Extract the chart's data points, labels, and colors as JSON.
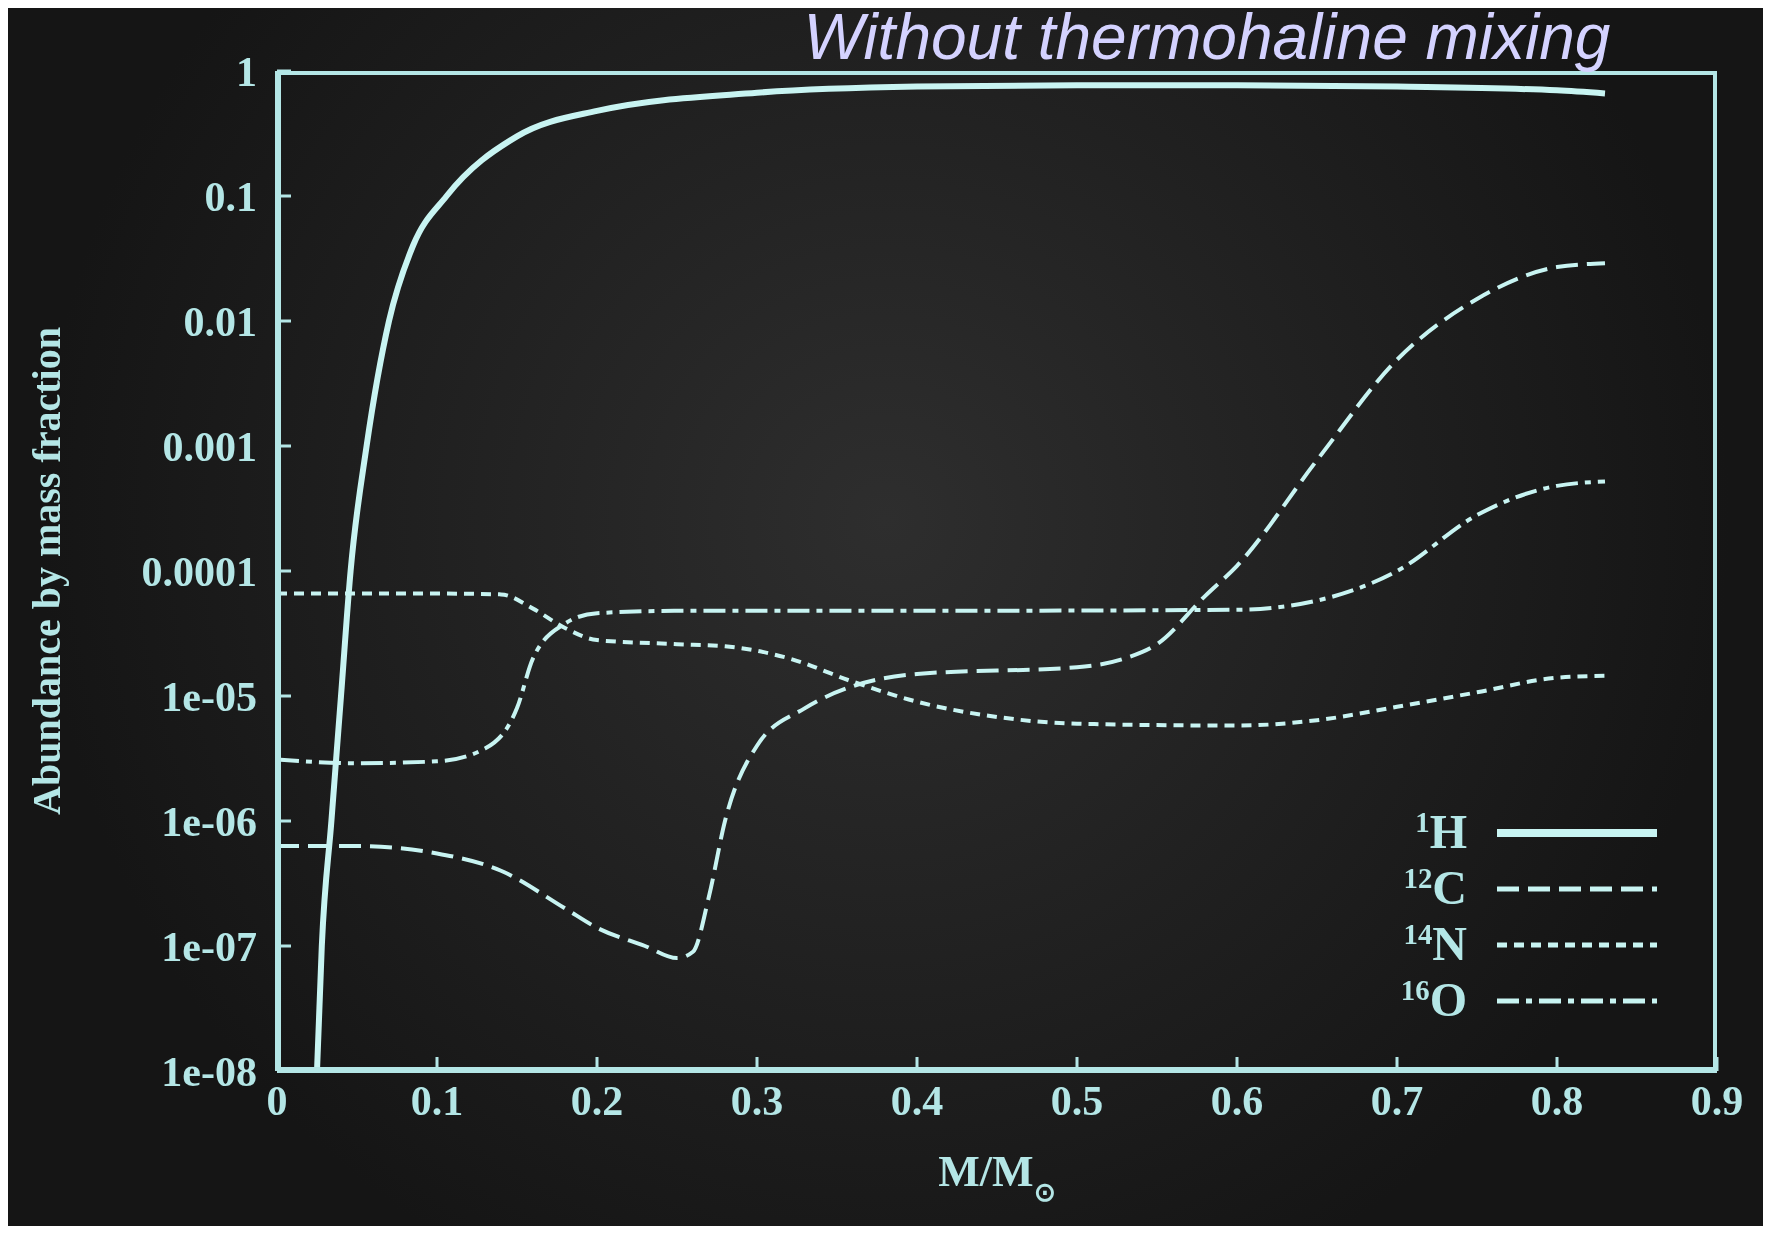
{
  "chart_data": {
    "type": "line",
    "title": "Without thermohaline mixing",
    "xlabel": "M/M$_{⊙}$",
    "ylabel": "Abundance by mass fraction",
    "xlim": [
      0,
      0.9
    ],
    "xticks": [
      0,
      0.1,
      0.2,
      0.3,
      0.4,
      0.5,
      0.6,
      0.7,
      0.8,
      0.9
    ],
    "ylim": [
      1e-08,
      1
    ],
    "yticks": [
      {
        "value": 1,
        "label": "1"
      },
      {
        "value": 0.1,
        "label": "0.1"
      },
      {
        "value": 0.01,
        "label": "0.01"
      },
      {
        "value": 0.001,
        "label": "0.001"
      },
      {
        "value": 0.0001,
        "label": "0.0001"
      },
      {
        "value": 1e-05,
        "label": "1e-05"
      },
      {
        "value": 1e-06,
        "label": "1e-06"
      },
      {
        "value": 1e-07,
        "label": "1e-07"
      },
      {
        "value": 1e-08,
        "label": "1e-08"
      }
    ],
    "log": "y",
    "legend": "bottom right",
    "marker": "none",
    "series": [
      {
        "name": "$^{1}$H",
        "color": "#c8f4f2",
        "line_style": "solid",
        "x": [
          0.025,
          0.028,
          0.034,
          0.04,
          0.046,
          0.056,
          0.07,
          0.085,
          0.106,
          0.15,
          0.2,
          0.3,
          0.4,
          0.5,
          0.6,
          0.7,
          0.8,
          0.83
        ],
        "values": [
          1e-08,
          1e-07,
          1e-06,
          1e-05,
          0.0001,
          0.001,
          0.01,
          0.04,
          0.1,
          0.3,
          0.48,
          0.67,
          0.75,
          0.77,
          0.77,
          0.75,
          0.7,
          0.66
        ]
      },
      {
        "name": "$^{12}$C",
        "color": "#c8f4f2",
        "line_style": "dashed",
        "x": [
          0,
          0.05,
          0.1,
          0.14,
          0.18,
          0.2,
          0.23,
          0.25,
          0.26,
          0.27,
          0.28,
          0.3,
          0.33,
          0.36,
          0.4,
          0.5,
          0.53,
          0.55,
          0.58,
          0.6,
          0.65,
          0.7,
          0.75,
          0.8,
          0.83
        ],
        "values": [
          6.3e-07,
          6.3e-07,
          5.5e-07,
          4e-07,
          2e-07,
          1.4e-07,
          1e-07,
          8e-08,
          9e-08,
          2.5e-07,
          1e-06,
          4e-06,
          8e-06,
          1.2e-05,
          1.5e-05,
          1.7e-05,
          2e-05,
          2.6e-05,
          6.3e-05,
          0.00011,
          0.00077,
          0.0049,
          0.015,
          0.027,
          0.029
        ]
      },
      {
        "name": "$^{14}$N",
        "color": "#c8f4f2",
        "line_style": "dotted",
        "x": [
          0,
          0.1,
          0.14,
          0.16,
          0.18,
          0.2,
          0.25,
          0.28,
          0.32,
          0.36,
          0.4,
          0.45,
          0.5,
          0.6,
          0.65,
          0.7,
          0.75,
          0.8,
          0.83
        ],
        "values": [
          6.6e-05,
          6.6e-05,
          6.5e-05,
          5e-05,
          3.5e-05,
          2.8e-05,
          2.6e-05,
          2.5e-05,
          2e-05,
          1.3e-05,
          9e-06,
          6.8e-06,
          6e-06,
          5.8e-06,
          6.4e-06,
          8.2e-06,
          1.07e-05,
          1.4e-05,
          1.45e-05
        ]
      },
      {
        "name": "$^{16}$O",
        "color": "#c8f4f2",
        "line_style": "dashdot",
        "x": [
          0,
          0.05,
          0.1,
          0.13,
          0.15,
          0.16,
          0.18,
          0.2,
          0.25,
          0.4,
          0.6,
          0.65,
          0.7,
          0.75,
          0.8,
          0.83
        ],
        "values": [
          3.1e-06,
          2.9e-06,
          3e-06,
          3.8e-06,
          8e-06,
          2e-05,
          3.8e-05,
          4.6e-05,
          4.8e-05,
          4.8e-05,
          4.9e-05,
          5.8e-05,
          0.0001,
          0.00028,
          0.00048,
          0.00052
        ]
      }
    ]
  }
}
